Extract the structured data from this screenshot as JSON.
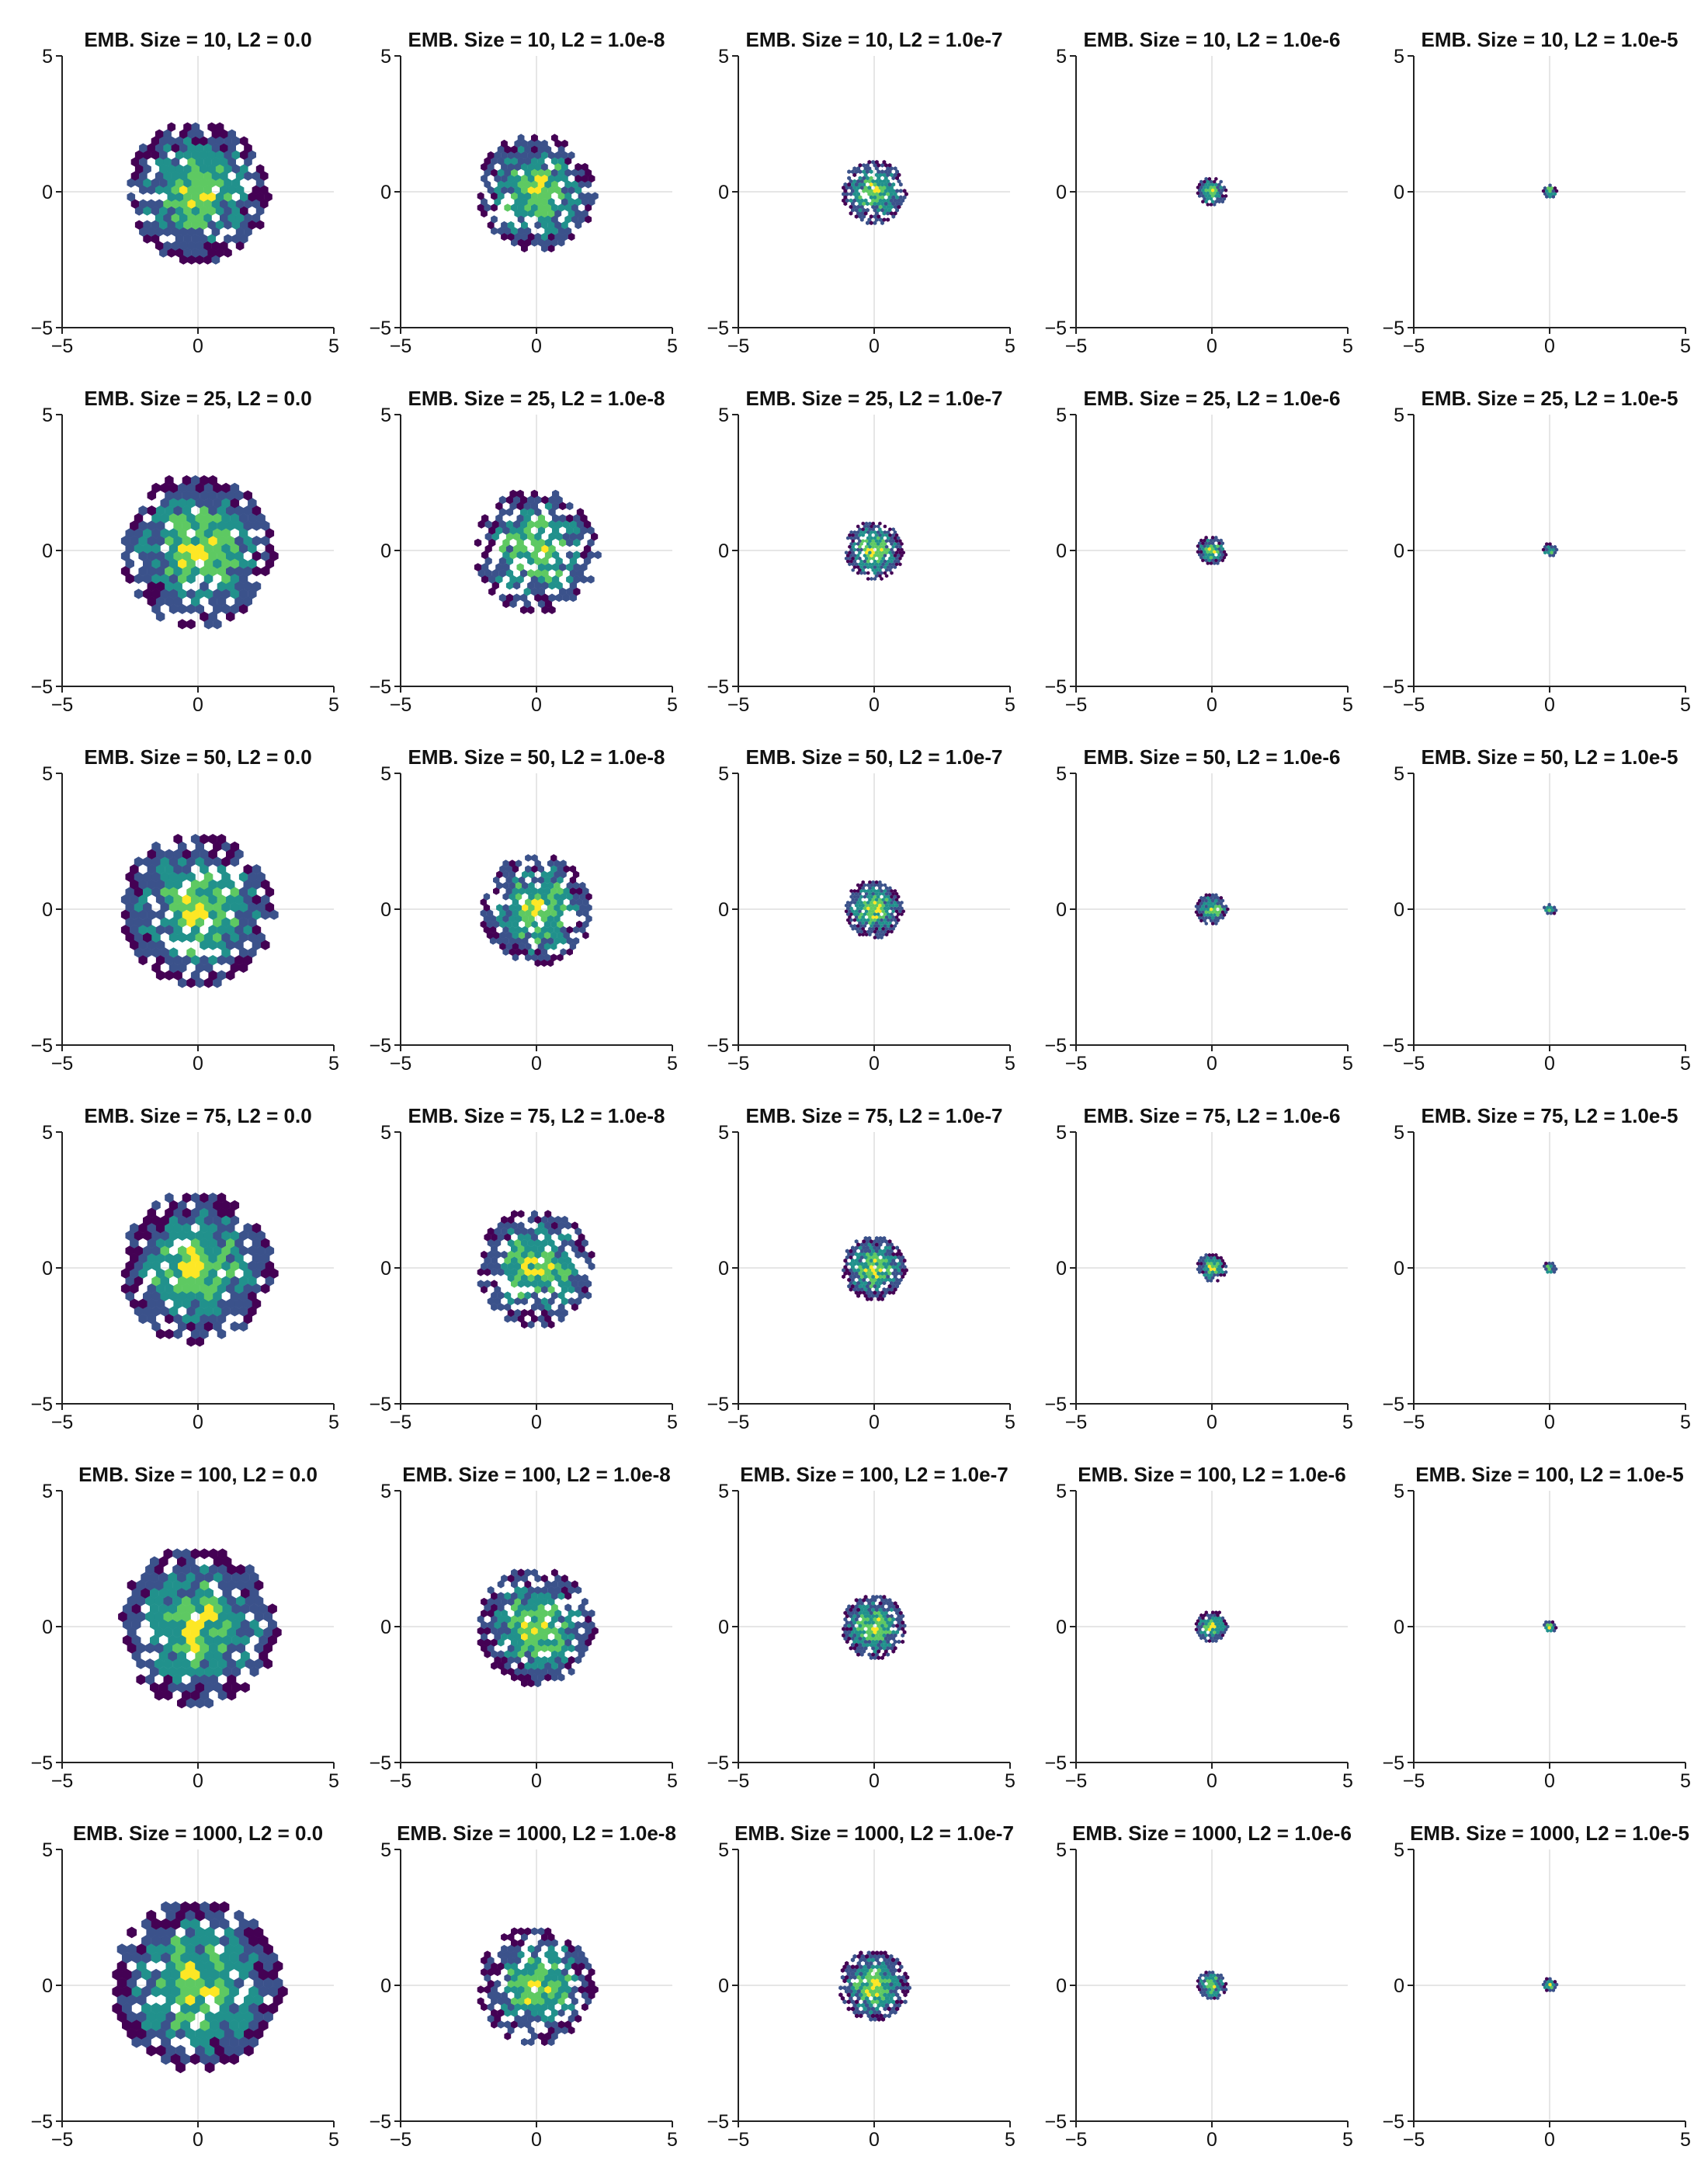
{
  "figure": {
    "colormap": [
      "#440154",
      "#3b528b",
      "#21918c",
      "#5ec962",
      "#fde725"
    ],
    "embedding_sizes": [
      10,
      25,
      50,
      75,
      100,
      1000
    ],
    "l2_values": [
      "0.0",
      "1.0e-8",
      "1.0e-7",
      "1.0e-6",
      "1.0e-5"
    ]
  },
  "chart_data": [
    {
      "type": "heatmap",
      "subtype": "hexbin",
      "title": "EMB. Size = 10, L2 = 0.0",
      "emb_size": 10,
      "l2": "0.0",
      "xlim": [
        -5,
        5
      ],
      "ylim": [
        -5,
        5
      ],
      "xticks": [
        "−5",
        "0",
        "5"
      ],
      "yticks": [
        "−5",
        "0",
        "5"
      ],
      "grid": true,
      "spread": 2.4,
      "center": [
        0,
        0
      ],
      "fill": 0.8
    },
    {
      "type": "heatmap",
      "subtype": "hexbin",
      "title": "EMB. Size = 10, L2 = 1.0e-8",
      "emb_size": 10,
      "l2": "1.0e-8",
      "xlim": [
        -5,
        5
      ],
      "ylim": [
        -5,
        5
      ],
      "xticks": [
        "−5",
        "0",
        "5"
      ],
      "yticks": [
        "−5",
        "0",
        "5"
      ],
      "grid": true,
      "spread": 2.0,
      "center": [
        0,
        0
      ],
      "fill": 0.7
    },
    {
      "type": "heatmap",
      "subtype": "hexbin",
      "title": "EMB. Size = 10, L2 = 1.0e-7",
      "emb_size": 10,
      "l2": "1.0e-7",
      "xlim": [
        -5,
        5
      ],
      "ylim": [
        -5,
        5
      ],
      "xticks": [
        "−5",
        "0",
        "5"
      ],
      "yticks": [
        "−5",
        "0",
        "5"
      ],
      "grid": true,
      "spread": 1.1,
      "center": [
        0,
        0
      ],
      "fill": 0.75
    },
    {
      "type": "heatmap",
      "subtype": "hexbin",
      "title": "EMB. Size = 10, L2 = 1.0e-6",
      "emb_size": 10,
      "l2": "1.0e-6",
      "xlim": [
        -5,
        5
      ],
      "ylim": [
        -5,
        5
      ],
      "xticks": [
        "−5",
        "0",
        "5"
      ],
      "yticks": [
        "−5",
        "0",
        "5"
      ],
      "grid": true,
      "spread": 0.5,
      "center": [
        0,
        0
      ],
      "fill": 0.85
    },
    {
      "type": "heatmap",
      "subtype": "hexbin",
      "title": "EMB. Size = 10, L2 = 1.0e-5",
      "emb_size": 10,
      "l2": "1.0e-5",
      "xlim": [
        -5,
        5
      ],
      "ylim": [
        -5,
        5
      ],
      "xticks": [
        "−5",
        "0",
        "5"
      ],
      "yticks": [
        "−5",
        "0",
        "5"
      ],
      "grid": true,
      "spread": 0.25,
      "center": [
        0,
        0
      ],
      "fill": 0.9
    },
    {
      "type": "heatmap",
      "subtype": "hexbin",
      "title": "EMB. Size = 25, L2 = 0.0",
      "emb_size": 25,
      "l2": "0.0",
      "xlim": [
        -5,
        5
      ],
      "ylim": [
        -5,
        5
      ],
      "xticks": [
        "−5",
        "0",
        "5"
      ],
      "yticks": [
        "−5",
        "0",
        "5"
      ],
      "grid": true,
      "spread": 2.6,
      "center": [
        0,
        0
      ],
      "fill": 0.75
    },
    {
      "type": "heatmap",
      "subtype": "hexbin",
      "title": "EMB. Size = 25, L2 = 1.0e-8",
      "emb_size": 25,
      "l2": "1.0e-8",
      "xlim": [
        -5,
        5
      ],
      "ylim": [
        -5,
        5
      ],
      "xticks": [
        "−5",
        "0",
        "5"
      ],
      "yticks": [
        "−5",
        "0",
        "5"
      ],
      "grid": true,
      "spread": 2.1,
      "center": [
        0,
        0
      ],
      "fill": 0.7
    },
    {
      "type": "heatmap",
      "subtype": "hexbin",
      "title": "EMB. Size = 25, L2 = 1.0e-7",
      "emb_size": 25,
      "l2": "1.0e-7",
      "xlim": [
        -5,
        5
      ],
      "ylim": [
        -5,
        5
      ],
      "xticks": [
        "−5",
        "0",
        "5"
      ],
      "yticks": [
        "−5",
        "0",
        "5"
      ],
      "grid": true,
      "spread": 1.0,
      "center": [
        0,
        0
      ],
      "fill": 0.75
    },
    {
      "type": "heatmap",
      "subtype": "hexbin",
      "title": "EMB. Size = 25, L2 = 1.0e-6",
      "emb_size": 25,
      "l2": "1.0e-6",
      "xlim": [
        -5,
        5
      ],
      "ylim": [
        -5,
        5
      ],
      "xticks": [
        "−5",
        "0",
        "5"
      ],
      "yticks": [
        "−5",
        "0",
        "5"
      ],
      "grid": true,
      "spread": 0.5,
      "center": [
        0,
        0
      ],
      "fill": 0.85
    },
    {
      "type": "heatmap",
      "subtype": "hexbin",
      "title": "EMB. Size = 25, L2 = 1.0e-5",
      "emb_size": 25,
      "l2": "1.0e-5",
      "xlim": [
        -5,
        5
      ],
      "ylim": [
        -5,
        5
      ],
      "xticks": [
        "−5",
        "0",
        "5"
      ],
      "yticks": [
        "−5",
        "0",
        "5"
      ],
      "grid": true,
      "spread": 0.25,
      "center": [
        0,
        0
      ],
      "fill": 0.9
    },
    {
      "type": "heatmap",
      "subtype": "hexbin",
      "title": "EMB. Size = 50, L2 = 0.0",
      "emb_size": 50,
      "l2": "0.0",
      "xlim": [
        -5,
        5
      ],
      "ylim": [
        -5,
        5
      ],
      "xticks": [
        "−5",
        "0",
        "5"
      ],
      "yticks": [
        "−5",
        "0",
        "5"
      ],
      "grid": true,
      "spread": 2.6,
      "center": [
        0,
        0
      ],
      "fill": 0.78
    },
    {
      "type": "heatmap",
      "subtype": "hexbin",
      "title": "EMB. Size = 50, L2 = 1.0e-8",
      "emb_size": 50,
      "l2": "1.0e-8",
      "xlim": [
        -5,
        5
      ],
      "ylim": [
        -5,
        5
      ],
      "xticks": [
        "−5",
        "0",
        "5"
      ],
      "yticks": [
        "−5",
        "0",
        "5"
      ],
      "grid": true,
      "spread": 1.9,
      "center": [
        0,
        0
      ],
      "fill": 0.72
    },
    {
      "type": "heatmap",
      "subtype": "hexbin",
      "title": "EMB. Size = 50, L2 = 1.0e-7",
      "emb_size": 50,
      "l2": "1.0e-7",
      "xlim": [
        -5,
        5
      ],
      "ylim": [
        -5,
        5
      ],
      "xticks": [
        "−5",
        "0",
        "5"
      ],
      "yticks": [
        "−5",
        "0",
        "5"
      ],
      "grid": true,
      "spread": 1.0,
      "center": [
        0,
        0
      ],
      "fill": 0.8
    },
    {
      "type": "heatmap",
      "subtype": "hexbin",
      "title": "EMB. Size = 50, L2 = 1.0e-6",
      "emb_size": 50,
      "l2": "1.0e-6",
      "xlim": [
        -5,
        5
      ],
      "ylim": [
        -5,
        5
      ],
      "xticks": [
        "−5",
        "0",
        "5"
      ],
      "yticks": [
        "−5",
        "0",
        "5"
      ],
      "grid": true,
      "spread": 0.55,
      "center": [
        0,
        0
      ],
      "fill": 0.85
    },
    {
      "type": "heatmap",
      "subtype": "hexbin",
      "title": "EMB. Size = 50, L2 = 1.0e-5",
      "emb_size": 50,
      "l2": "1.0e-5",
      "xlim": [
        -5,
        5
      ],
      "ylim": [
        -5,
        5
      ],
      "xticks": [
        "−5",
        "0",
        "5"
      ],
      "yticks": [
        "−5",
        "0",
        "5"
      ],
      "grid": true,
      "spread": 0.22,
      "center": [
        0,
        0
      ],
      "fill": 0.9
    },
    {
      "type": "heatmap",
      "subtype": "hexbin",
      "title": "EMB. Size = 75, L2 = 0.0",
      "emb_size": 75,
      "l2": "0.0",
      "xlim": [
        -5,
        5
      ],
      "ylim": [
        -5,
        5
      ],
      "xticks": [
        "−5",
        "0",
        "5"
      ],
      "yticks": [
        "−5",
        "0",
        "5"
      ],
      "grid": true,
      "spread": 2.6,
      "center": [
        0,
        0
      ],
      "fill": 0.78
    },
    {
      "type": "heatmap",
      "subtype": "hexbin",
      "title": "EMB. Size = 75, L2 = 1.0e-8",
      "emb_size": 75,
      "l2": "1.0e-8",
      "xlim": [
        -5,
        5
      ],
      "ylim": [
        -5,
        5
      ],
      "xticks": [
        "−5",
        "0",
        "5"
      ],
      "yticks": [
        "−5",
        "0",
        "5"
      ],
      "grid": true,
      "spread": 2.0,
      "center": [
        0,
        0
      ],
      "fill": 0.72
    },
    {
      "type": "heatmap",
      "subtype": "hexbin",
      "title": "EMB. Size = 75, L2 = 1.0e-7",
      "emb_size": 75,
      "l2": "1.0e-7",
      "xlim": [
        -5,
        5
      ],
      "ylim": [
        -5,
        5
      ],
      "xticks": [
        "−5",
        "0",
        "5"
      ],
      "yticks": [
        "−5",
        "0",
        "5"
      ],
      "grid": true,
      "spread": 1.1,
      "center": [
        0,
        0
      ],
      "fill": 0.8
    },
    {
      "type": "heatmap",
      "subtype": "hexbin",
      "title": "EMB. Size = 75, L2 = 1.0e-6",
      "emb_size": 75,
      "l2": "1.0e-6",
      "xlim": [
        -5,
        5
      ],
      "ylim": [
        -5,
        5
      ],
      "xticks": [
        "−5",
        "0",
        "5"
      ],
      "yticks": [
        "−5",
        "0",
        "5"
      ],
      "grid": true,
      "spread": 0.5,
      "center": [
        0,
        0
      ],
      "fill": 0.85
    },
    {
      "type": "heatmap",
      "subtype": "hexbin",
      "title": "EMB. Size = 75, L2 = 1.0e-5",
      "emb_size": 75,
      "l2": "1.0e-5",
      "xlim": [
        -5,
        5
      ],
      "ylim": [
        -5,
        5
      ],
      "xticks": [
        "−5",
        "0",
        "5"
      ],
      "yticks": [
        "−5",
        "0",
        "5"
      ],
      "grid": true,
      "spread": 0.22,
      "center": [
        0,
        0
      ],
      "fill": 0.9
    },
    {
      "type": "heatmap",
      "subtype": "hexbin",
      "title": "EMB. Size = 100, L2 = 0.0",
      "emb_size": 100,
      "l2": "0.0",
      "xlim": [
        -5,
        5
      ],
      "ylim": [
        -5,
        5
      ],
      "xticks": [
        "−5",
        "0",
        "5"
      ],
      "yticks": [
        "−5",
        "0",
        "5"
      ],
      "grid": true,
      "spread": 2.7,
      "center": [
        0,
        0
      ],
      "fill": 0.8
    },
    {
      "type": "heatmap",
      "subtype": "hexbin",
      "title": "EMB. Size = 100, L2 = 1.0e-8",
      "emb_size": 100,
      "l2": "1.0e-8",
      "xlim": [
        -5,
        5
      ],
      "ylim": [
        -5,
        5
      ],
      "xticks": [
        "−5",
        "0",
        "5"
      ],
      "yticks": [
        "−5",
        "0",
        "5"
      ],
      "grid": true,
      "spread": 2.0,
      "center": [
        0,
        0
      ],
      "fill": 0.72
    },
    {
      "type": "heatmap",
      "subtype": "hexbin",
      "title": "EMB. Size = 100, L2 = 1.0e-7",
      "emb_size": 100,
      "l2": "1.0e-7",
      "xlim": [
        -5,
        5
      ],
      "ylim": [
        -5,
        5
      ],
      "xticks": [
        "−5",
        "0",
        "5"
      ],
      "yticks": [
        "−5",
        "0",
        "5"
      ],
      "grid": true,
      "spread": 1.1,
      "center": [
        0,
        0
      ],
      "fill": 0.8
    },
    {
      "type": "heatmap",
      "subtype": "hexbin",
      "title": "EMB. Size = 100, L2 = 1.0e-6",
      "emb_size": 100,
      "l2": "1.0e-6",
      "xlim": [
        -5,
        5
      ],
      "ylim": [
        -5,
        5
      ],
      "xticks": [
        "−5",
        "0",
        "5"
      ],
      "yticks": [
        "−5",
        "0",
        "5"
      ],
      "grid": true,
      "spread": 0.55,
      "center": [
        0,
        0
      ],
      "fill": 0.85
    },
    {
      "type": "heatmap",
      "subtype": "hexbin",
      "title": "EMB. Size = 100, L2 = 1.0e-5",
      "emb_size": 100,
      "l2": "1.0e-5",
      "xlim": [
        -5,
        5
      ],
      "ylim": [
        -5,
        5
      ],
      "xticks": [
        "−5",
        "0",
        "5"
      ],
      "yticks": [
        "−5",
        "0",
        "5"
      ],
      "grid": true,
      "spread": 0.22,
      "center": [
        0,
        0
      ],
      "fill": 0.9
    },
    {
      "type": "heatmap",
      "subtype": "hexbin",
      "title": "EMB. Size = 1000, L2 = 0.0",
      "emb_size": 1000,
      "l2": "0.0",
      "xlim": [
        -5,
        5
      ],
      "ylim": [
        -5,
        5
      ],
      "xticks": [
        "−5",
        "0",
        "5"
      ],
      "yticks": [
        "−5",
        "0",
        "5"
      ],
      "grid": true,
      "spread": 2.9,
      "center": [
        0,
        0
      ],
      "fill": 0.8
    },
    {
      "type": "heatmap",
      "subtype": "hexbin",
      "title": "EMB. Size = 1000, L2 = 1.0e-8",
      "emb_size": 1000,
      "l2": "1.0e-8",
      "xlim": [
        -5,
        5
      ],
      "ylim": [
        -5,
        5
      ],
      "xticks": [
        "−5",
        "0",
        "5"
      ],
      "yticks": [
        "−5",
        "0",
        "5"
      ],
      "grid": true,
      "spread": 2.0,
      "center": [
        0,
        0
      ],
      "fill": 0.72
    },
    {
      "type": "heatmap",
      "subtype": "hexbin",
      "title": "EMB. Size = 1000, L2 = 1.0e-7",
      "emb_size": 1000,
      "l2": "1.0e-7",
      "xlim": [
        -5,
        5
      ],
      "ylim": [
        -5,
        5
      ],
      "xticks": [
        "−5",
        "0",
        "5"
      ],
      "yticks": [
        "−5",
        "0",
        "5"
      ],
      "grid": true,
      "spread": 1.2,
      "center": [
        0,
        0
      ],
      "fill": 0.82
    },
    {
      "type": "heatmap",
      "subtype": "hexbin",
      "title": "EMB. Size = 1000, L2 = 1.0e-6",
      "emb_size": 1000,
      "l2": "1.0e-6",
      "xlim": [
        -5,
        5
      ],
      "ylim": [
        -5,
        5
      ],
      "xticks": [
        "−5",
        "0",
        "5"
      ],
      "yticks": [
        "−5",
        "0",
        "5"
      ],
      "grid": true,
      "spread": 0.5,
      "center": [
        0,
        0
      ],
      "fill": 0.85
    },
    {
      "type": "heatmap",
      "subtype": "hexbin",
      "title": "EMB. Size = 1000, L2 = 1.0e-5",
      "emb_size": 1000,
      "l2": "1.0e-5",
      "xlim": [
        -5,
        5
      ],
      "ylim": [
        -5,
        5
      ],
      "xticks": [
        "−5",
        "0",
        "5"
      ],
      "yticks": [
        "−5",
        "0",
        "5"
      ],
      "grid": true,
      "spread": 0.25,
      "center": [
        0,
        0
      ],
      "fill": 0.9
    }
  ]
}
